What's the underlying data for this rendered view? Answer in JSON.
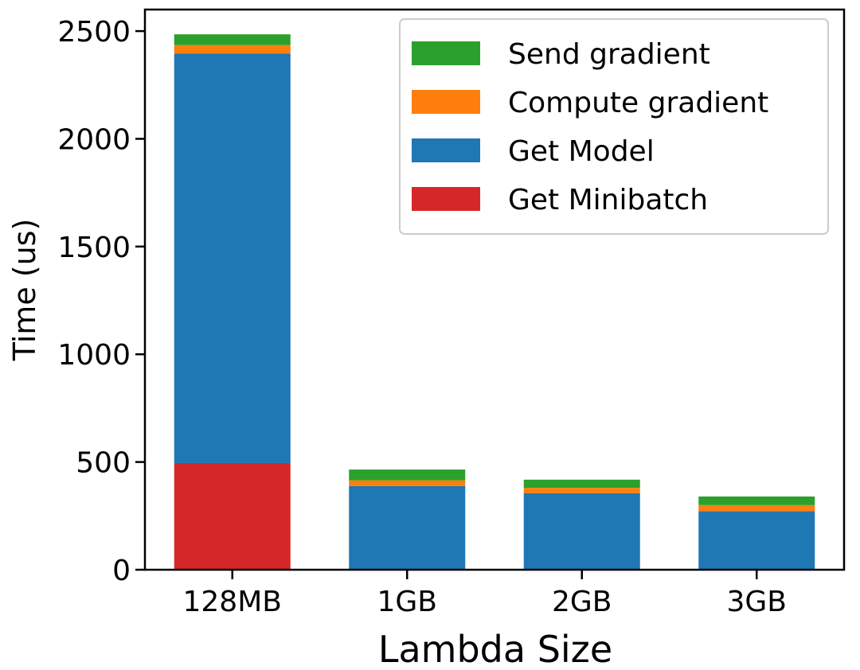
{
  "chart_data": {
    "type": "bar",
    "stacked": true,
    "title": "",
    "xlabel": "Lambda Size",
    "ylabel": "Time (us)",
    "ylim": [
      0,
      2600
    ],
    "yticks": [
      0,
      500,
      1000,
      1500,
      2000,
      2500
    ],
    "grid": false,
    "legend_position": "top-right",
    "categories": [
      "128MB",
      "1GB",
      "2GB",
      "3GB"
    ],
    "series": [
      {
        "name": "Get Minibatch",
        "color": "#d62728",
        "values": [
          495,
          0,
          0,
          0
        ]
      },
      {
        "name": "Get Model",
        "color": "#1f77b4",
        "values": [
          1900,
          388,
          355,
          272
        ]
      },
      {
        "name": "Compute gradient",
        "color": "#ff7f0e",
        "values": [
          40,
          27,
          25,
          28
        ]
      },
      {
        "name": "Send gradient",
        "color": "#2ca02c",
        "values": [
          50,
          50,
          38,
          40
        ]
      }
    ],
    "legend_order": [
      "Send gradient",
      "Compute gradient",
      "Get Model",
      "Get Minibatch"
    ]
  }
}
